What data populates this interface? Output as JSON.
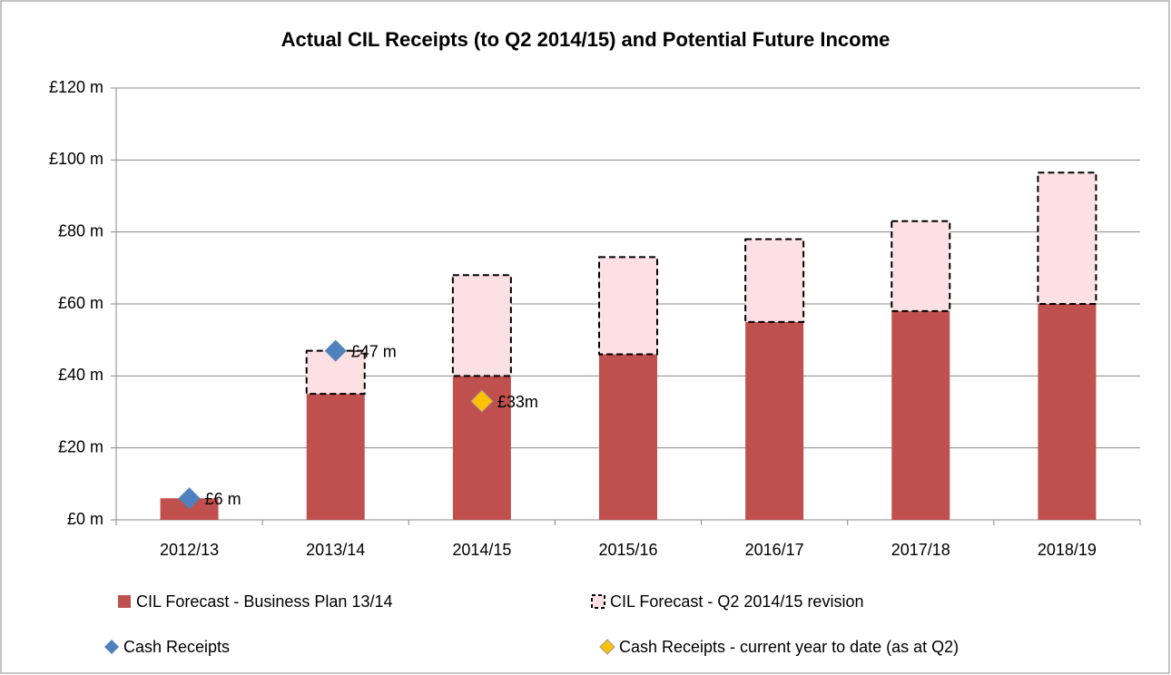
{
  "chart_data": {
    "type": "bar",
    "title": "Actual CIL Receipts (to Q2 2014/15) and Potential Future Income",
    "categories": [
      "2012/13",
      "2013/14",
      "2014/15",
      "2015/16",
      "2016/17",
      "2017/18",
      "2018/19"
    ],
    "series": [
      {
        "name": "CIL Forecast - Business Plan 13/14",
        "color": "#c0504d",
        "kind": "bar",
        "values": [
          6,
          35,
          40,
          46,
          55,
          58,
          60
        ]
      },
      {
        "name": "CIL Forecast - Q2 2014/15 revision",
        "color": "#fde0e3",
        "kind": "bar",
        "dashed": true,
        "values": [
          null,
          12,
          28,
          27,
          23,
          25,
          36.5
        ]
      },
      {
        "name": "Cash Receipts",
        "color": "#4f81bd",
        "kind": "marker",
        "values": [
          6,
          47,
          null,
          null,
          null,
          null,
          null
        ],
        "value_labels": [
          "£6 m",
          "£47 m",
          null,
          null,
          null,
          null,
          null
        ]
      },
      {
        "name": "Cash Receipts - current year to date (as at Q2)",
        "color": "#ffc000",
        "kind": "marker",
        "values": [
          null,
          null,
          33,
          null,
          null,
          null,
          null
        ],
        "value_labels": [
          null,
          null,
          "£33m",
          null,
          null,
          null,
          null
        ]
      }
    ],
    "ylim": [
      0,
      120
    ],
    "yticks": [
      {
        "value": 0,
        "label": "£0 m"
      },
      {
        "value": 20,
        "label": "£20 m"
      },
      {
        "value": 40,
        "label": "£40 m"
      },
      {
        "value": 60,
        "label": "£60 m"
      },
      {
        "value": 80,
        "label": "£80 m"
      },
      {
        "value": 100,
        "label": "£100 m"
      },
      {
        "value": 120,
        "label": "£120 m"
      }
    ],
    "grid": true,
    "legend": "bottom"
  }
}
